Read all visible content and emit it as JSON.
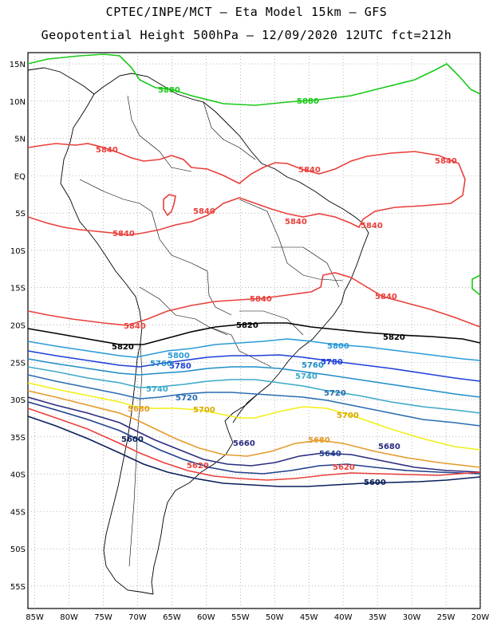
{
  "header": {
    "title_line1": "CPTEC/INPE/MCT –  Eta Model 15km – GFS",
    "title_line2": "Geopotential Height 500hPa – 12/09/2020 12UTC fct=212h"
  },
  "axes": {
    "lat_labels": [
      "15N",
      "10N",
      "5N",
      "EQ",
      "5S",
      "10S",
      "15S",
      "20S",
      "25S",
      "30S",
      "35S",
      "40S",
      "45S",
      "50S",
      "55S"
    ],
    "lon_labels": [
      "85W",
      "80W",
      "75W",
      "70W",
      "65W",
      "60W",
      "55W",
      "50W",
      "45W",
      "40W",
      "35W",
      "30W",
      "25W",
      "20W"
    ],
    "lat_values": [
      15,
      10,
      5,
      0,
      -5,
      -10,
      -15,
      -20,
      -25,
      -30,
      -35,
      -40,
      -45,
      -50,
      -55
    ],
    "lon_values": [
      -85,
      -80,
      -75,
      -70,
      -65,
      -60,
      -55,
      -50,
      -45,
      -40,
      -35,
      -30,
      -25,
      -20
    ],
    "lat_range": [
      -58,
      16.5
    ],
    "lon_range": [
      -86,
      -20
    ],
    "grid": true
  },
  "contours": [
    {
      "level": "5880",
      "color": "#19c919",
      "labels": [
        "5880",
        "5880"
      ]
    },
    {
      "level": "5840",
      "color": "#e8403c",
      "labels": [
        "5840",
        "5840",
        "5840",
        "5840",
        "5840",
        "5840",
        "5840",
        "5840",
        "5840",
        "5840"
      ]
    },
    {
      "level": "5820",
      "color": "#000000",
      "labels": [
        "5820",
        "5820",
        "5820"
      ]
    },
    {
      "level": "5800",
      "color": "#2a9ad8",
      "labels": [
        "5800",
        "5800"
      ]
    },
    {
      "level": "5780",
      "color": "#1f3ed8",
      "labels": [
        "5780",
        "5780"
      ]
    },
    {
      "level": "5760",
      "color": "#1f8dc8",
      "labels": [
        "5760",
        "5760"
      ]
    },
    {
      "level": "5740",
      "color": "#3ba9c9",
      "labels": [
        "5740",
        "5740"
      ]
    },
    {
      "level": "5720",
      "color": "#2a6db0",
      "labels": [
        "5720",
        "5720"
      ]
    },
    {
      "level": "5700",
      "color": "#f1ef16",
      "labels": [
        "5700",
        "5700"
      ]
    },
    {
      "level": "5680",
      "color": "#e59a2a",
      "labels": [
        "5680",
        "5680",
        "5680"
      ]
    },
    {
      "level": "5660",
      "color": "#2b2b80",
      "labels": [
        "5660"
      ]
    },
    {
      "level": "5640",
      "color": "#1f3e8a",
      "labels": [
        "5640"
      ]
    },
    {
      "level": "5620",
      "color": "#e8403c",
      "labels": [
        "5620",
        "5620"
      ]
    },
    {
      "level": "5600",
      "color": "#0a1f5a",
      "labels": [
        "5600",
        "5600"
      ]
    }
  ]
}
